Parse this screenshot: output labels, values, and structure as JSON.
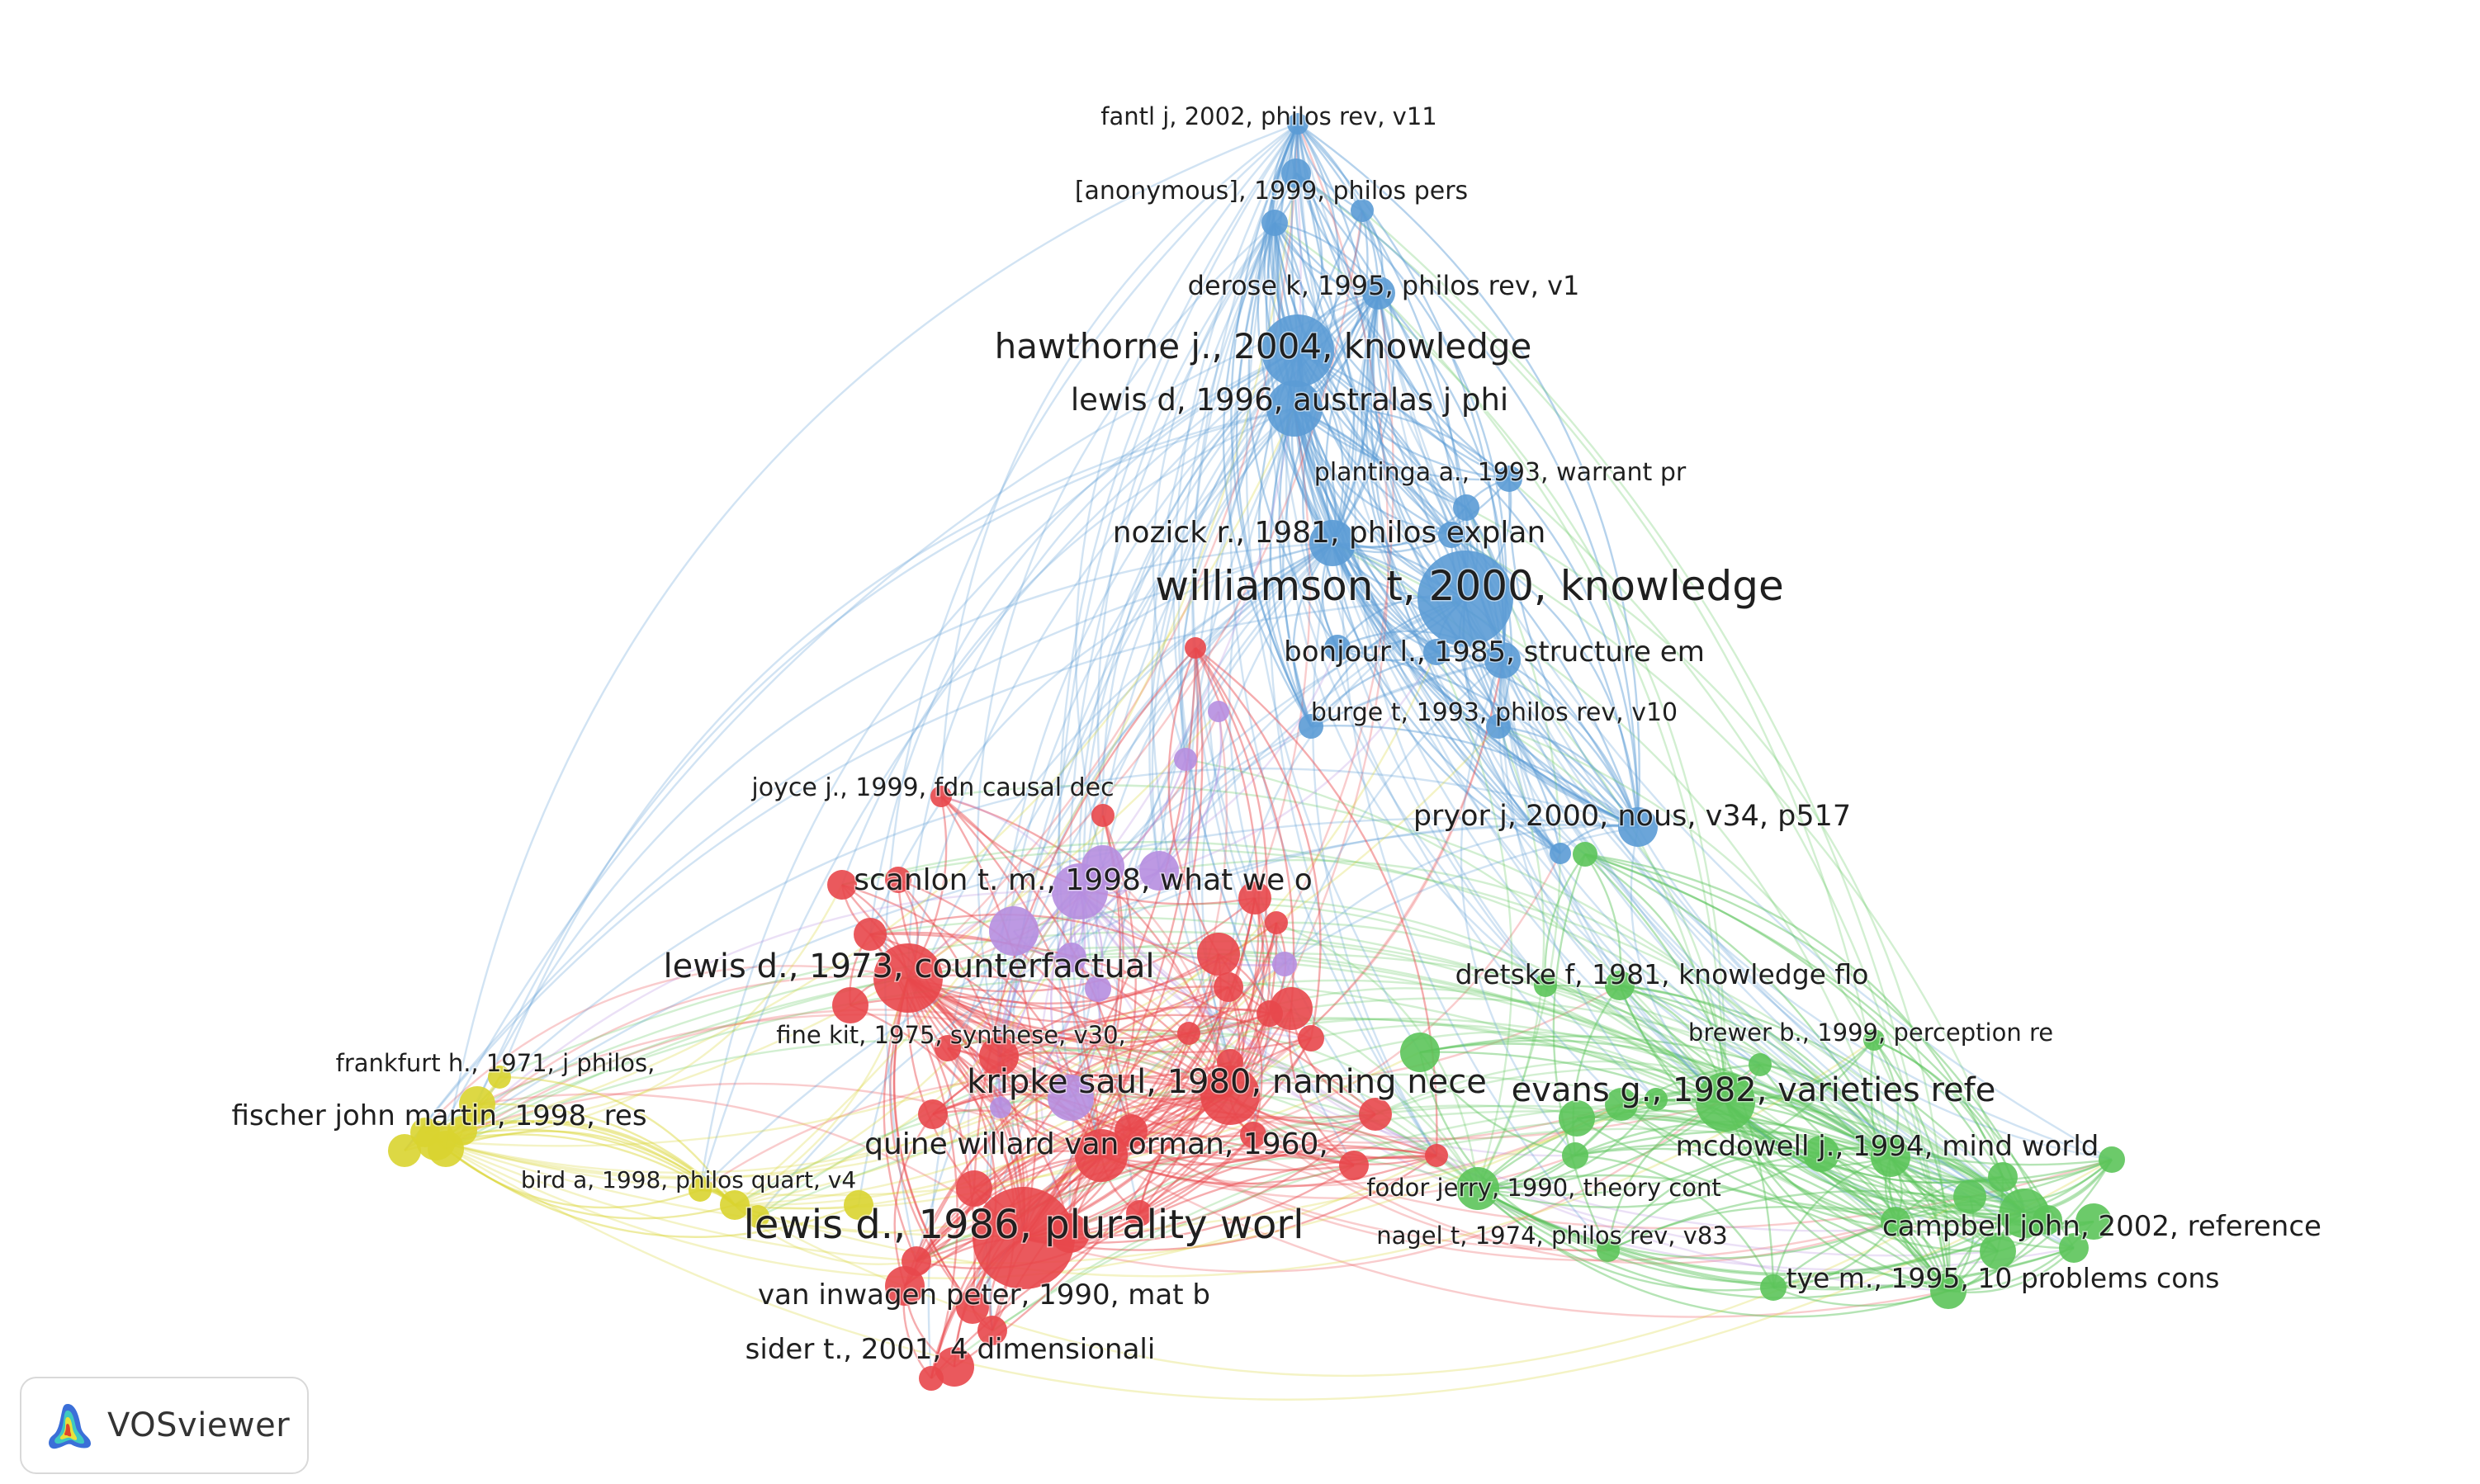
{
  "app": {
    "name": "VOSviewer",
    "logo_icon": "vosviewer-logo-icon"
  },
  "clusters": {
    "blue": "#5b9bd5",
    "red": "#e8474b",
    "green": "#5cc45a",
    "purple": "#b68ee0",
    "yellow": "#d9d430"
  },
  "labels": {
    "williamson": "williamson t, 2000, knowledge",
    "hawthorne": "hawthorne j., 2004, knowledge",
    "lewis1996": "lewis d, 1996, australas j phi",
    "nozick": "nozick r., 1981, philos explan",
    "bonjour": "bonjour l., 1985, structure em",
    "burge": "burge t, 1993, philos rev, v10",
    "plantinga": "plantinga a., 1993, warrant pr",
    "derose": "derose k, 1995, philos rev, v1",
    "anonymous": "[anonymous], 1999, philos pers",
    "fantl": "fantl j, 2002, philos rev, v11",
    "pryor": "pryor j, 2000, nous, v34, p517",
    "joyce": "joyce j., 1999, fdn causal dec",
    "scanlon": "scanlon t. m., 1998, what we o",
    "lewis1973": "lewis d., 1973, counterfactual",
    "fine": "fine kit, 1975, synthese, v30,",
    "kripke": "kripke saul, 1980, naming nece",
    "quine": "quine willard van orman, 1960,",
    "lewis1986": "lewis d., 1986, plurality worl",
    "vaninwagen": "van inwagen peter, 1990, mat b",
    "sider": "sider t., 2001, 4 dimensionali",
    "frankfurt": "frankfurt h., 1971, j philos,",
    "fischer": "fischer john martin, 1998, res",
    "bird": "bird a, 1998, philos quart, v4",
    "dretske": "dretske f, 1981, knowledge flo",
    "brewer": "brewer b., 1999, perception re",
    "evans": "evans g., 1982, varieties refe",
    "mcdowell": "mcdowell j., 1994, mind world",
    "fodor": "fodor jerry, 1990, theory cont",
    "nagel": "nagel t, 1974, philos rev, v83",
    "campbell": "campbell john, 2002, reference",
    "tye": "tye m., 1995, 10 problems cons"
  }
}
